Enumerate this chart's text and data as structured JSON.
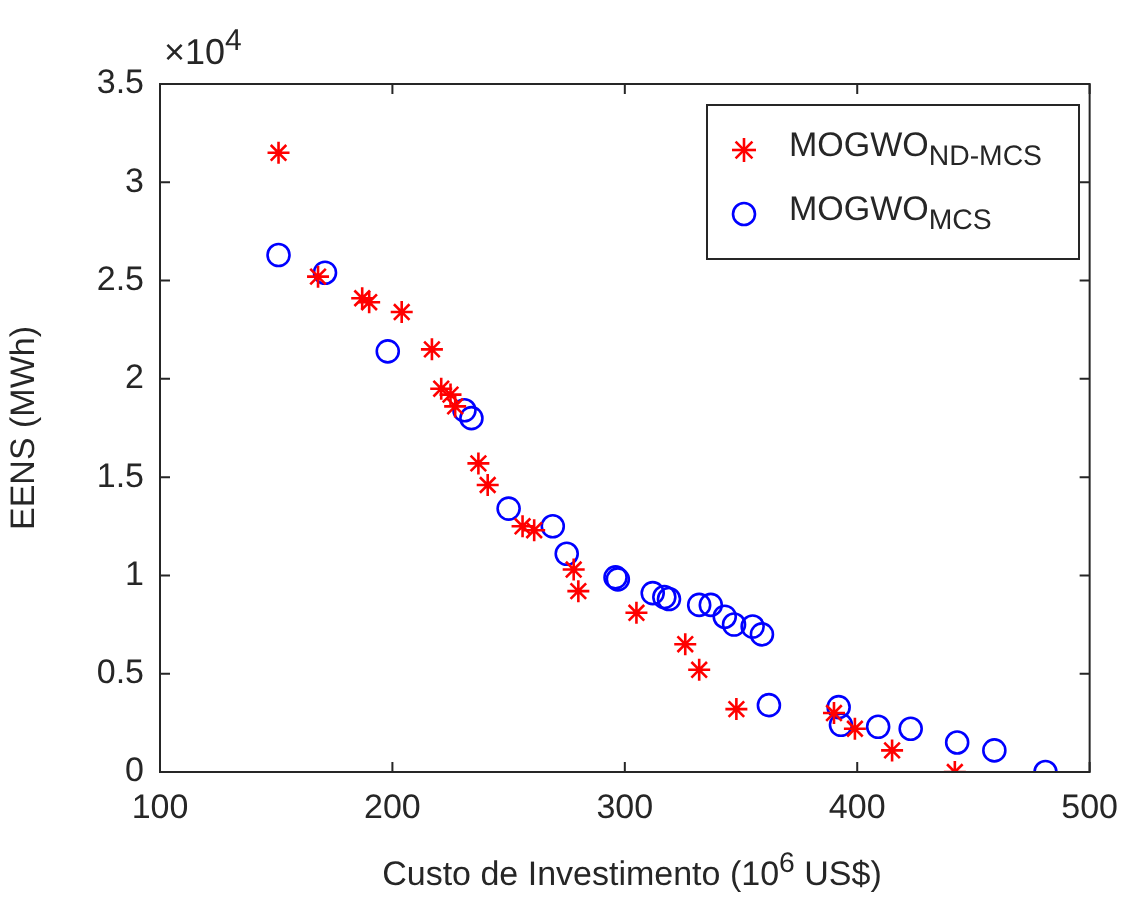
{
  "chart_data": {
    "type": "scatter",
    "xlabel": "Custo de Investimento (10$^{6}$ US$)",
    "ylabel": "EENS (MWh)",
    "annotations": [
      "×10$^{4}$"
    ],
    "xlim": [
      100,
      500
    ],
    "xticks": [
      100,
      200,
      300,
      400,
      500
    ],
    "ylim": [
      0,
      3.5
    ],
    "yticks": [
      0,
      0.5,
      1,
      1.5,
      2,
      2.5,
      3,
      3.5
    ],
    "grid": false,
    "legend": "top right",
    "series": [
      {
        "name": "MOGWO$_{ND-MCS}$",
        "color": "#ff0000",
        "marker": "cross",
        "x": [
          151,
          168,
          187,
          190,
          204,
          217,
          221,
          225,
          227,
          237,
          241,
          256,
          261,
          278,
          280,
          305,
          326,
          332,
          348,
          390,
          399,
          415,
          442
        ],
        "values": [
          3.15,
          2.52,
          2.41,
          2.39,
          2.34,
          2.15,
          1.95,
          1.92,
          1.86,
          1.57,
          1.46,
          1.25,
          1.23,
          1.03,
          0.92,
          0.81,
          0.65,
          0.52,
          0.32,
          0.3,
          0.22,
          0.11,
          0
        ]
      },
      {
        "name": "MOGWO$_{MCS}$",
        "color": "#0000ff",
        "marker": "circle",
        "x": [
          151,
          171,
          198,
          231,
          234,
          250,
          269,
          275,
          296,
          297,
          312,
          317,
          319,
          332,
          337,
          343,
          347,
          355,
          359,
          362,
          392,
          393,
          409,
          423,
          443,
          459,
          481
        ],
        "values": [
          2.63,
          2.54,
          2.14,
          1.84,
          1.8,
          1.34,
          1.25,
          1.11,
          0.99,
          0.98,
          0.91,
          0.89,
          0.88,
          0.85,
          0.85,
          0.79,
          0.75,
          0.74,
          0.7,
          0.34,
          0.33,
          0.24,
          0.23,
          0.22,
          0.15,
          0.11,
          0
        ]
      }
    ]
  }
}
